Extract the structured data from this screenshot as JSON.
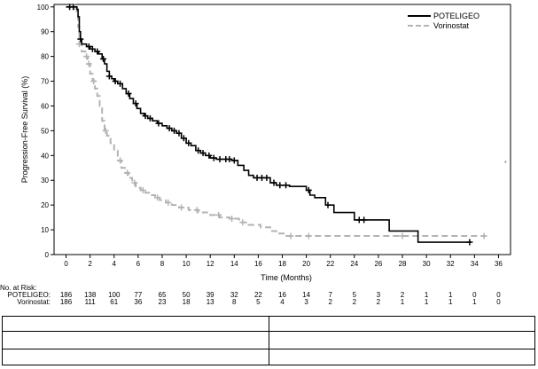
{
  "chart_data": {
    "type": "line",
    "xlabel": "Time (Months)",
    "ylabel": "Progression-Free Survival (%)",
    "xlim": [
      -1,
      37
    ],
    "ylim": [
      0,
      101
    ],
    "x_ticks": [
      0,
      2,
      4,
      6,
      8,
      10,
      12,
      14,
      16,
      18,
      20,
      22,
      24,
      26,
      28,
      30,
      32,
      34,
      36
    ],
    "y_ticks": [
      0,
      10,
      20,
      30,
      40,
      50,
      60,
      70,
      80,
      90,
      100
    ],
    "legend_position": "top-right",
    "series": [
      {
        "name": "POTELIGEO",
        "color": "#000000",
        "style": "solid",
        "steps": [
          [
            0,
            100
          ],
          [
            0.9,
            99
          ],
          [
            1.0,
            96
          ],
          [
            1.1,
            90
          ],
          [
            1.2,
            87
          ],
          [
            1.3,
            85
          ],
          [
            1.7,
            84
          ],
          [
            2.0,
            83
          ],
          [
            2.4,
            82
          ],
          [
            2.7,
            81
          ],
          [
            3.0,
            79
          ],
          [
            3.2,
            77
          ],
          [
            3.4,
            74
          ],
          [
            3.6,
            72
          ],
          [
            3.8,
            71
          ],
          [
            4.0,
            70
          ],
          [
            4.3,
            69
          ],
          [
            4.7,
            67
          ],
          [
            5.0,
            65
          ],
          [
            5.3,
            63
          ],
          [
            5.6,
            61
          ],
          [
            5.9,
            59
          ],
          [
            6.2,
            57
          ],
          [
            6.5,
            56
          ],
          [
            6.8,
            55
          ],
          [
            7.2,
            54
          ],
          [
            7.6,
            53
          ],
          [
            8.0,
            52
          ],
          [
            8.4,
            51
          ],
          [
            8.8,
            50
          ],
          [
            9.2,
            49
          ],
          [
            9.6,
            47
          ],
          [
            10.0,
            45
          ],
          [
            10.4,
            44
          ],
          [
            10.8,
            42
          ],
          [
            11.2,
            41
          ],
          [
            11.6,
            40
          ],
          [
            12.0,
            39
          ],
          [
            12.5,
            38.5
          ],
          [
            13.8,
            38
          ],
          [
            14.3,
            36
          ],
          [
            14.8,
            34
          ],
          [
            15.2,
            32
          ],
          [
            15.6,
            31
          ],
          [
            17.0,
            29
          ],
          [
            17.5,
            28
          ],
          [
            18.6,
            27.5
          ],
          [
            20.0,
            26
          ],
          [
            20.3,
            24
          ],
          [
            20.7,
            23
          ],
          [
            21.6,
            20
          ],
          [
            22.3,
            17
          ],
          [
            24.0,
            14
          ],
          [
            26.9,
            9.5
          ],
          [
            29.3,
            5
          ],
          [
            33.7,
            5
          ]
        ],
        "censor_times": [
          0.3,
          0.6,
          1.2,
          1.9,
          2.2,
          2.6,
          3.1,
          3.6,
          4.1,
          4.5,
          5.2,
          5.8,
          6.6,
          7.0,
          7.7,
          8.6,
          9.0,
          9.4,
          9.8,
          10.2,
          11.0,
          11.4,
          11.9,
          12.3,
          12.8,
          13.3,
          13.6,
          14.0,
          15.9,
          16.3,
          16.7,
          17.3,
          17.8,
          18.3,
          20.2,
          21.8,
          24.4,
          24.8,
          33.6
        ]
      },
      {
        "name": "Vorinostat",
        "color": "#b3b3b3",
        "style": "dashed",
        "steps": [
          [
            0,
            100
          ],
          [
            0.9,
            98
          ],
          [
            1.0,
            92
          ],
          [
            1.1,
            85
          ],
          [
            1.3,
            82
          ],
          [
            1.6,
            80
          ],
          [
            1.8,
            77
          ],
          [
            2.0,
            73
          ],
          [
            2.2,
            70
          ],
          [
            2.4,
            67
          ],
          [
            2.6,
            64
          ],
          [
            2.8,
            60
          ],
          [
            3.0,
            54
          ],
          [
            3.2,
            50
          ],
          [
            3.4,
            48
          ],
          [
            3.7,
            45
          ],
          [
            4.0,
            42
          ],
          [
            4.3,
            38
          ],
          [
            4.6,
            35
          ],
          [
            4.9,
            33
          ],
          [
            5.2,
            31
          ],
          [
            5.5,
            29
          ],
          [
            5.8,
            27
          ],
          [
            6.2,
            26
          ],
          [
            6.6,
            25
          ],
          [
            7.0,
            24
          ],
          [
            7.4,
            23
          ],
          [
            7.8,
            22
          ],
          [
            8.3,
            21
          ],
          [
            8.8,
            20
          ],
          [
            9.4,
            19
          ],
          [
            10.2,
            18
          ],
          [
            11.0,
            17
          ],
          [
            12.0,
            16
          ],
          [
            12.8,
            15
          ],
          [
            13.6,
            14.5
          ],
          [
            14.4,
            13
          ],
          [
            15.2,
            12
          ],
          [
            16.2,
            11
          ],
          [
            17.0,
            9.5
          ],
          [
            17.6,
            8.5
          ],
          [
            18.2,
            7.5
          ],
          [
            34.9,
            7.5
          ]
        ],
        "censor_times": [
          0.3,
          0.7,
          1.1,
          1.7,
          1.9,
          2.3,
          3.3,
          4.5,
          5.1,
          5.7,
          6.4,
          7.6,
          8.5,
          9.6,
          10.9,
          12.7,
          13.8,
          14.7,
          18.7,
          20.2,
          28.0,
          34.8
        ]
      }
    ],
    "risk_table": {
      "header": "No. at Risk:",
      "rows": [
        {
          "label": "POTELIGEO:",
          "values": [
            "186",
            "138",
            "100",
            "77",
            "65",
            "50",
            "39",
            "32",
            "22",
            "16",
            "14",
            "7",
            "5",
            "3",
            "2",
            "1",
            "1",
            "0",
            "0"
          ]
        },
        {
          "label": "Vorinostat:",
          "values": [
            "186",
            "111",
            "61",
            "36",
            "23",
            "18",
            "13",
            "8",
            "5",
            "4",
            "3",
            "2",
            "2",
            "2",
            "1",
            "1",
            "1",
            "1",
            "0"
          ]
        }
      ]
    }
  }
}
